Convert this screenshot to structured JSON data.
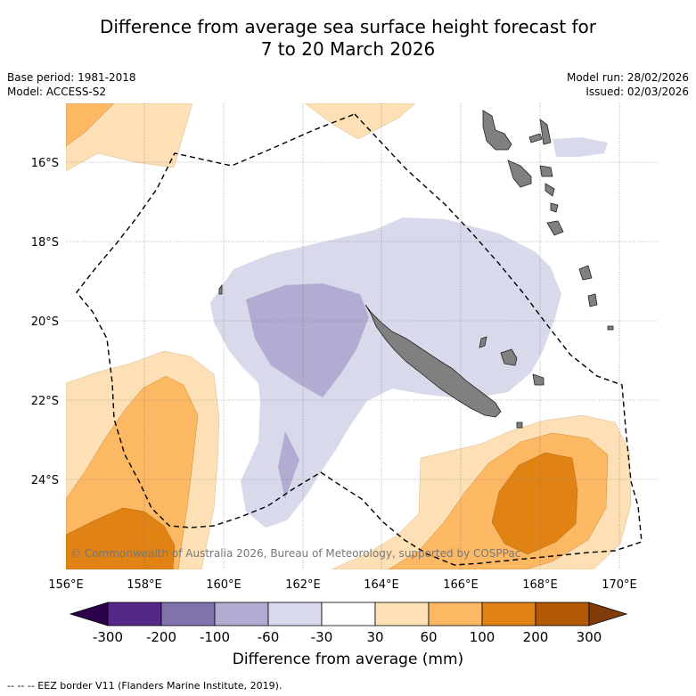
{
  "title_line1": "Difference from average sea surface height forecast for",
  "title_line2": "7 to 20 March 2026",
  "base_period": "Base period: 1981-2018",
  "model": "Model: ACCESS-S2",
  "model_run": "Model run: 28/02/2026",
  "issued": "Issued: 02/03/2026",
  "copyright": "© Commonwealth of Australia 2026, Bureau of Meteorology, supported by COSPPac",
  "lat_labels": [
    "16°S",
    "18°S",
    "20°S",
    "22°S",
    "24°S"
  ],
  "lon_labels": [
    "156°E",
    "158°E",
    "160°E",
    "162°E",
    "164°E",
    "166°E",
    "168°E",
    "170°E"
  ],
  "colorbar": {
    "title": "Difference from average (mm)",
    "ticks": [
      "-300",
      "-200",
      "-100",
      "-60",
      "-30",
      "30",
      "60",
      "100",
      "200",
      "300"
    ],
    "colors": [
      "#2d004b",
      "#542788",
      "#8073ac",
      "#b2abd2",
      "#d8daeb",
      "#ffffff",
      "#fee0b6",
      "#fdb863",
      "#e08214",
      "#b35806",
      "#7f3b08"
    ]
  },
  "footnote": "-- -- -- EEZ border V11 (Flanders Marine Institute, 2019).",
  "land_color": "#808080"
}
